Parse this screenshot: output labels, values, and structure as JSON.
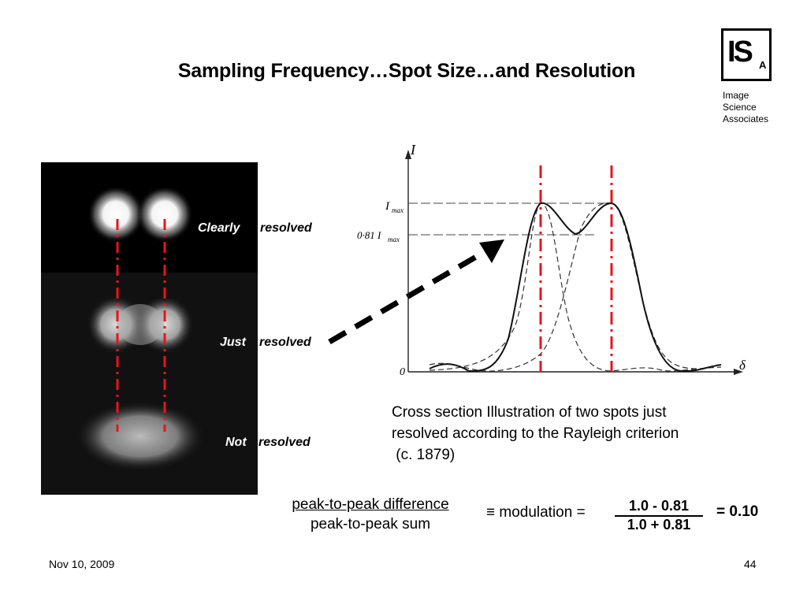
{
  "slide": {
    "title": "Sampling Frequency…Spot Size…and Resolution",
    "logo_letters": "IS",
    "logo_subscript": "A",
    "company_lines": [
      "Image",
      "Science",
      "Associates"
    ],
    "labels": {
      "clearly_a": "Clearly",
      "clearly_b": "resolved",
      "just_a": "Just",
      "just_b": "resolved",
      "not_a": "Not",
      "not_b": "resolved"
    },
    "graph": {
      "axis_y": "I",
      "axis_x": "δ",
      "imax": "I",
      "imax_sub": "max",
      "imax081": "0·81 I",
      "imax081_sub": "max",
      "origin": "0"
    },
    "caption_lines": [
      "Cross section Illustration of two spots just",
      "resolved according to the Rayleigh criterion",
      " (c. 1879)"
    ],
    "formula": {
      "numerator": "peak-to-peak difference",
      "denominator": "peak-to-peak sum",
      "equiv": "≡ modulation =",
      "num_value": "1.0 - 0.81",
      "den_value": "1.0 + 0.81",
      "result": "= 0.10"
    },
    "footer": {
      "date": "Nov 10, 2009",
      "page": "44"
    },
    "colors": {
      "marker_red": "#e8141b",
      "panel_black": "#000000"
    }
  }
}
